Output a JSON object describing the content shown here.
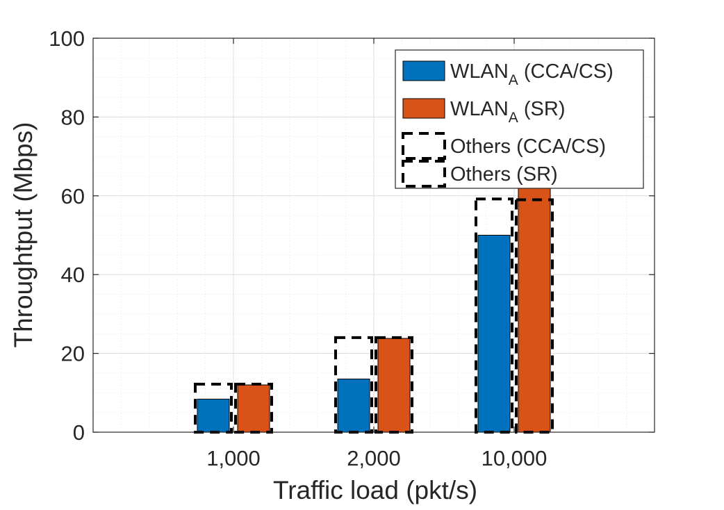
{
  "chart_data": {
    "type": "bar",
    "xlabel": "Traffic load (pkt/s)",
    "ylabel": "Throughtput (Mbps)",
    "categories": [
      "1,000",
      "2,000",
      "10,000"
    ],
    "ylim": [
      0,
      100
    ],
    "yticks": [
      "0",
      "20",
      "40",
      "60",
      "80",
      "100"
    ],
    "ytick_values": [
      0,
      20,
      40,
      60,
      80,
      100
    ],
    "grid": true,
    "minor_grid": true,
    "legend_position": "top-right",
    "series": [
      {
        "name_main": "WLAN",
        "name_sub": "A",
        "name_rest": " (CCA/CS)",
        "style": "filled",
        "color": "#0072BD",
        "values": [
          8.4,
          13.5,
          50.0
        ]
      },
      {
        "name_main": "WLAN",
        "name_sub": "A",
        "name_rest": " (SR)",
        "style": "filled",
        "color": "#D95319",
        "values": [
          12.0,
          23.8,
          62.0
        ]
      },
      {
        "name_main": "Others (CCA/CS)",
        "name_sub": "",
        "name_rest": "",
        "style": "dashed-outline",
        "color": "#000000",
        "values": [
          12.2,
          24.0,
          59.2
        ]
      },
      {
        "name_main": "Others (SR)",
        "name_sub": "",
        "name_rest": "",
        "style": "dashed-outline",
        "color": "#000000",
        "values": [
          12.2,
          24.0,
          59.0
        ]
      }
    ]
  }
}
